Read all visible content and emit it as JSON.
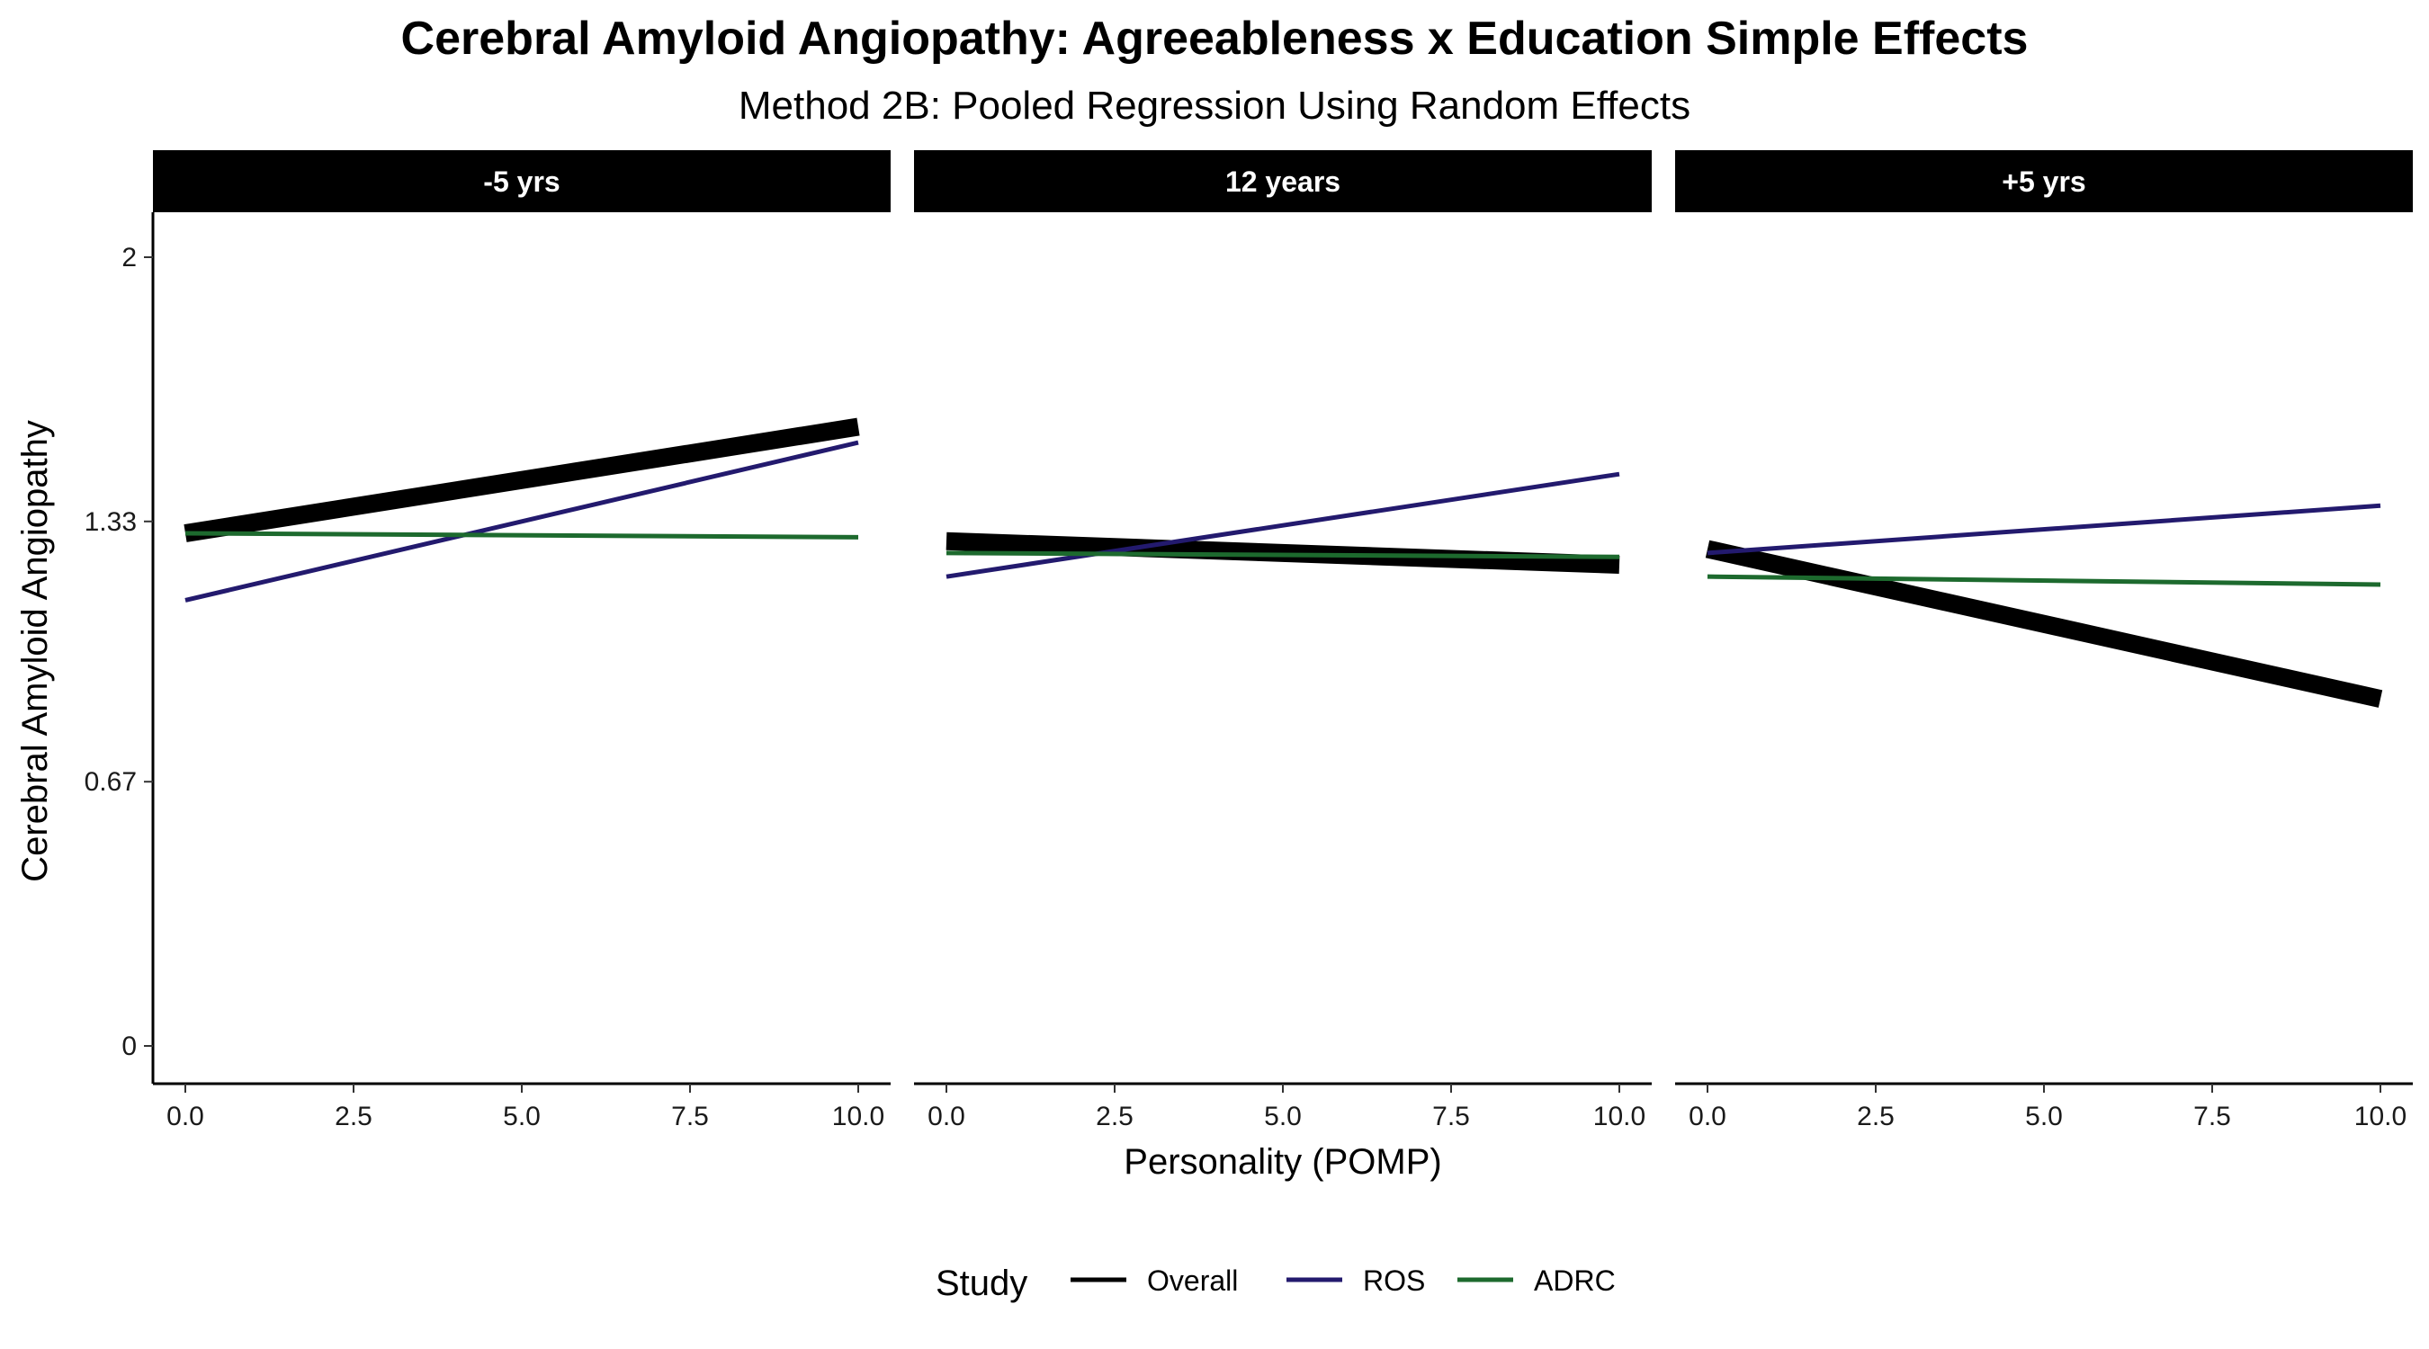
{
  "chart_data": {
    "type": "line",
    "title": "Cerebral Amyloid Angiopathy: Agreeableness x Education Simple Effects",
    "subtitle": "Method 2B: Pooled Regression Using Random Effects",
    "xlabel": "Personality (POMP)",
    "ylabel": "Cerebral Amyloid Angiopathy",
    "xlim": [
      0,
      10
    ],
    "ylim": [
      0,
      2
    ],
    "x_ticks": [
      0.0,
      2.5,
      5.0,
      7.5,
      10.0
    ],
    "x_tick_labels": [
      "0.0",
      "2.5",
      "5.0",
      "7.5",
      "10.0"
    ],
    "y_ticks": [
      0,
      0.67,
      1.33,
      2
    ],
    "y_tick_labels": [
      "0",
      "0.67",
      "1.33",
      "2"
    ],
    "grid": false,
    "legend": {
      "title": "Study",
      "position": "bottom",
      "entries": [
        "Overall",
        "ROS",
        "ADRC"
      ]
    },
    "colors": {
      "Overall": "#000000",
      "ROS": "#231a6e",
      "ADRC": "#1d6a2e",
      "strip_bg": "#000000",
      "strip_text": "#ffffff"
    },
    "panels": [
      {
        "label": "-5 yrs",
        "series": [
          {
            "name": "Overall",
            "x": [
              0,
              10
            ],
            "y": [
              1.3,
              1.57
            ]
          },
          {
            "name": "ROS",
            "x": [
              0,
              10
            ],
            "y": [
              1.13,
              1.53
            ]
          },
          {
            "name": "ADRC",
            "x": [
              0,
              10
            ],
            "y": [
              1.3,
              1.29
            ]
          }
        ]
      },
      {
        "label": "12 years",
        "series": [
          {
            "name": "Overall",
            "x": [
              0,
              10
            ],
            "y": [
              1.28,
              1.22
            ]
          },
          {
            "name": "ROS",
            "x": [
              0,
              10
            ],
            "y": [
              1.19,
              1.45
            ]
          },
          {
            "name": "ADRC",
            "x": [
              0,
              10
            ],
            "y": [
              1.25,
              1.24
            ]
          }
        ]
      },
      {
        "label": "+5 yrs",
        "series": [
          {
            "name": "Overall",
            "x": [
              0,
              10
            ],
            "y": [
              1.26,
              0.88
            ]
          },
          {
            "name": "ROS",
            "x": [
              0,
              10
            ],
            "y": [
              1.25,
              1.37
            ]
          },
          {
            "name": "ADRC",
            "x": [
              0,
              10
            ],
            "y": [
              1.19,
              1.17
            ]
          }
        ]
      }
    ]
  }
}
